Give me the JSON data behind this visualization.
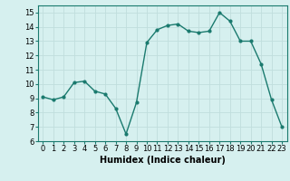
{
  "x": [
    0,
    1,
    2,
    3,
    4,
    5,
    6,
    7,
    8,
    9,
    10,
    11,
    12,
    13,
    14,
    15,
    16,
    17,
    18,
    19,
    20,
    21,
    22,
    23
  ],
  "y": [
    9.1,
    8.9,
    9.1,
    10.1,
    10.2,
    9.5,
    9.3,
    8.3,
    6.5,
    8.7,
    12.9,
    13.8,
    14.1,
    14.2,
    13.7,
    13.6,
    13.7,
    15.0,
    14.4,
    13.0,
    13.0,
    11.4,
    8.9,
    7.0
  ],
  "xlim": [
    -0.5,
    23.5
  ],
  "ylim": [
    6,
    15.5
  ],
  "yticks": [
    6,
    7,
    8,
    9,
    10,
    11,
    12,
    13,
    14,
    15
  ],
  "xticks": [
    0,
    1,
    2,
    3,
    4,
    5,
    6,
    7,
    8,
    9,
    10,
    11,
    12,
    13,
    14,
    15,
    16,
    17,
    18,
    19,
    20,
    21,
    22,
    23
  ],
  "xlabel": "Humidex (Indice chaleur)",
  "line_color": "#1a7a6e",
  "marker": "o",
  "marker_size": 2,
  "bg_color": "#d6f0ef",
  "grid_color": "#c0dedd",
  "tick_fontsize": 6,
  "xlabel_fontsize": 7,
  "line_width": 1.0
}
